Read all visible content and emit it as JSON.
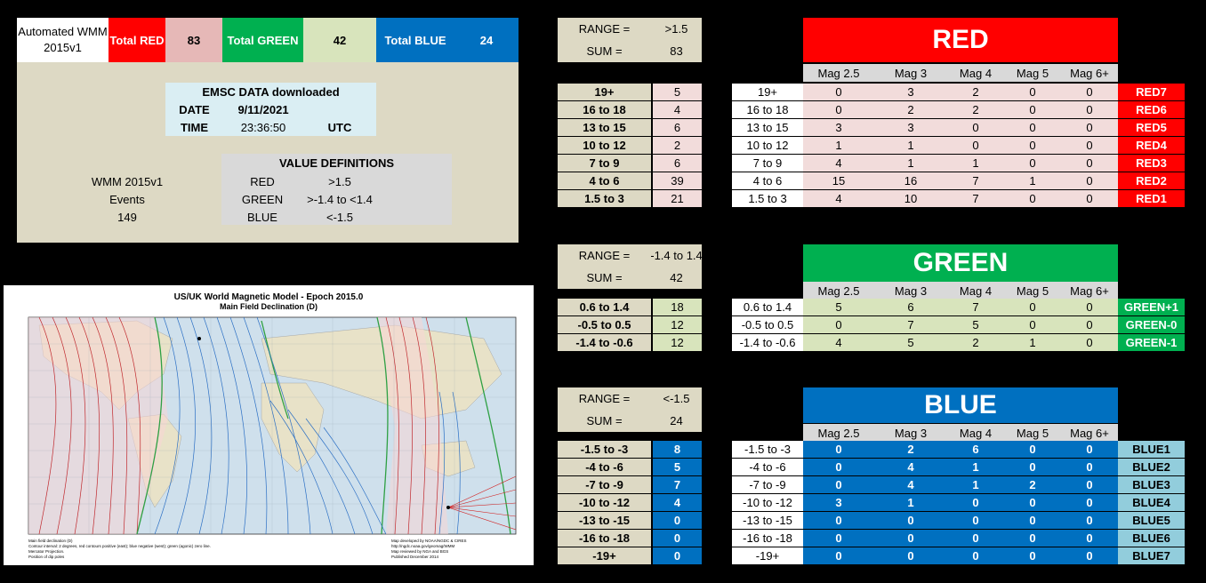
{
  "summary": {
    "app_title": "Automated WMM 2015v1",
    "total_red_label": "Total RED",
    "total_red_value": "83",
    "total_green_label": "Total GREEN",
    "total_green_value": "42",
    "total_blue_label": "Total BLUE",
    "total_blue_value": "24"
  },
  "emsc": {
    "title": "EMSC DATA downloaded",
    "date_label": "DATE",
    "date_value": "9/11/2021",
    "time_label": "TIME",
    "time_value": "23:36:50",
    "tz": "UTC"
  },
  "events": {
    "line1": "WMM 2015v1",
    "line2": "Events",
    "count": "149"
  },
  "value_definitions": {
    "title": "VALUE DEFINITIONS",
    "rows": [
      {
        "name": "RED",
        "range": ">1.5"
      },
      {
        "name": "GREEN",
        "range": ">-1.4  to  <1.4"
      },
      {
        "name": "BLUE",
        "range": "<-1.5"
      }
    ]
  },
  "map": {
    "title": "US/UK World Magnetic Model - Epoch 2015.0",
    "subtitle": "Main Field Declination (D)",
    "footer_left": [
      "Main field declination (D)",
      "Contour interval: 2 degrees, red contours positive (east); blue negative (west); green (agonic) zero line.",
      "Mercator Projection.",
      "Position of dip poles"
    ],
    "footer_right": [
      "Map developed by NOAA/NGDC & CIRES",
      "http://ngdc.noaa.gov/geomag/WMM",
      "Map reviewed by NGA and BGS",
      "Published December 2014"
    ]
  },
  "mag_headers": [
    "Mag 2.5",
    "Mag 3",
    "Mag 4",
    "Mag 5",
    "Mag 6+"
  ],
  "red": {
    "title": "RED",
    "range_label": "RANGE =",
    "range_value": ">1.5",
    "sum_label": "SUM =",
    "sum_value": "83",
    "rows": [
      {
        "range": "19+",
        "count": "5",
        "mags": [
          "0",
          "3",
          "2",
          "0",
          "0"
        ],
        "label": "RED7"
      },
      {
        "range": "16 to 18",
        "count": "4",
        "mags": [
          "0",
          "2",
          "2",
          "0",
          "0"
        ],
        "label": "RED6"
      },
      {
        "range": "13 to 15",
        "count": "6",
        "mags": [
          "3",
          "3",
          "0",
          "0",
          "0"
        ],
        "label": "RED5"
      },
      {
        "range": "10 to 12",
        "count": "2",
        "mags": [
          "1",
          "1",
          "0",
          "0",
          "0"
        ],
        "label": "RED4"
      },
      {
        "range": "7 to 9",
        "count": "6",
        "mags": [
          "4",
          "1",
          "1",
          "0",
          "0"
        ],
        "label": "RED3"
      },
      {
        "range": "4 to 6",
        "count": "39",
        "mags": [
          "15",
          "16",
          "7",
          "1",
          "0"
        ],
        "label": "RED2"
      },
      {
        "range": "1.5 to 3",
        "count": "21",
        "mags": [
          "4",
          "10",
          "7",
          "0",
          "0"
        ],
        "label": "RED1"
      }
    ]
  },
  "green": {
    "title": "GREEN",
    "range_label": "RANGE =",
    "range_value": "-1.4 to 1.4",
    "sum_label": "SUM =",
    "sum_value": "42",
    "rows": [
      {
        "range": "0.6 to 1.4",
        "count": "18",
        "mags": [
          "5",
          "6",
          "7",
          "0",
          "0"
        ],
        "label": "GREEN+1"
      },
      {
        "range": "-0.5 to 0.5",
        "count": "12",
        "mags": [
          "0",
          "7",
          "5",
          "0",
          "0"
        ],
        "label": "GREEN-0"
      },
      {
        "range": "-1.4 to -0.6",
        "count": "12",
        "mags": [
          "4",
          "5",
          "2",
          "1",
          "0"
        ],
        "label": "GREEN-1"
      }
    ]
  },
  "blue": {
    "title": "BLUE",
    "range_label": "RANGE =",
    "range_value": "<-1.5",
    "sum_label": "SUM =",
    "sum_value": "24",
    "rows": [
      {
        "range": "-1.5 to -3",
        "count": "8",
        "mags": [
          "0",
          "2",
          "6",
          "0",
          "0"
        ],
        "label": "BLUE1"
      },
      {
        "range": "-4 to -6",
        "count": "5",
        "mags": [
          "0",
          "4",
          "1",
          "0",
          "0"
        ],
        "label": "BLUE2"
      },
      {
        "range": "-7 to -9",
        "count": "7",
        "mags": [
          "0",
          "4",
          "1",
          "2",
          "0"
        ],
        "label": "BLUE3"
      },
      {
        "range": "-10 to -12",
        "count": "4",
        "mags": [
          "3",
          "1",
          "0",
          "0",
          "0"
        ],
        "label": "BLUE4"
      },
      {
        "range": "-13 to -15",
        "count": "0",
        "mags": [
          "0",
          "0",
          "0",
          "0",
          "0"
        ],
        "label": "BLUE5"
      },
      {
        "range": "-16 to -18",
        "count": "0",
        "mags": [
          "0",
          "0",
          "0",
          "0",
          "0"
        ],
        "label": "BLUE6"
      },
      {
        "range": "-19+",
        "count": "0",
        "mags": [
          "0",
          "0",
          "0",
          "0",
          "0"
        ],
        "label": "BLUE7"
      }
    ]
  },
  "colors": {
    "red": "#ff0000",
    "green": "#00b050",
    "blue": "#0070c0",
    "pink": "#f2dcdb",
    "light_green": "#d8e4bc",
    "light_blue": "#92cddc",
    "tan": "#ddd9c4"
  }
}
